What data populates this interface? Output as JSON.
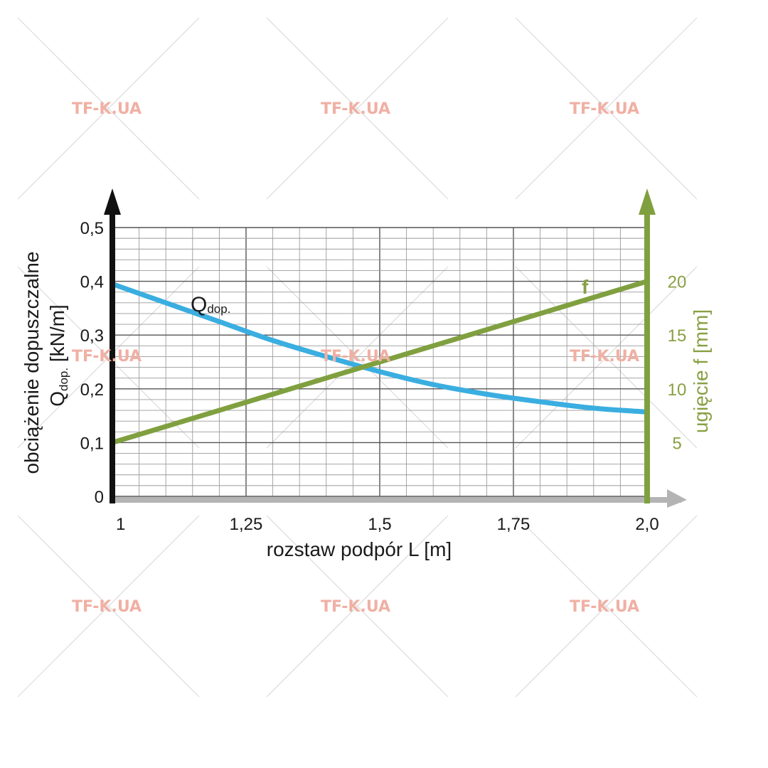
{
  "watermark": {
    "text": "TF-K.UA",
    "color": "#f0b0a4",
    "lines_color": "#dcdcdc"
  },
  "chart_data": {
    "type": "line",
    "x": [
      1,
      1.1,
      1.2,
      1.3,
      1.4,
      1.5,
      1.6,
      1.7,
      1.8,
      1.9,
      2.0
    ],
    "xlim": [
      1,
      2.0
    ],
    "xticks": [
      "1",
      "1,25",
      "1,5",
      "1,75",
      "2,0"
    ],
    "xtick_values": [
      1,
      1.25,
      1.5,
      1.75,
      2.0
    ],
    "xlabel": "rozstaw podpór L [m]",
    "ylim": [
      0,
      0.5
    ],
    "yticks": [
      "0",
      "0,1",
      "0,2",
      "0,3",
      "0,4",
      "0,5"
    ],
    "ytick_values": [
      0,
      0.1,
      0.2,
      0.3,
      0.4,
      0.5
    ],
    "ylabel_main": "obciążenie dopuszczalne",
    "ylabel_sym": "Q",
    "ylabel_sub": "dop.",
    "ylabel_unit": " [kN/m]",
    "y2lim": [
      0,
      25
    ],
    "y2ticks": [
      "5",
      "10",
      "15",
      "20"
    ],
    "y2tick_values": [
      5,
      10,
      15,
      20
    ],
    "y2label": "ugięcie f [mm]",
    "grid": true,
    "series": [
      {
        "name_sym": "Q",
        "name_sub": "dop.",
        "axis": "left",
        "color": "#3aaee0",
        "values": [
          0.395,
          0.36,
          0.325,
          0.29,
          0.26,
          0.232,
          0.208,
          0.19,
          0.176,
          0.164,
          0.157
        ]
      },
      {
        "name": "f",
        "axis": "right",
        "color": "#80a040",
        "values": [
          5,
          6.5,
          8,
          9.5,
          11,
          12.5,
          14,
          15.5,
          17,
          18.5,
          20
        ]
      }
    ],
    "colors": {
      "left_axis": "#111111",
      "right_axis": "#80a040",
      "x_axis": "#b4b4b4",
      "grid_major": "#555555",
      "grid_minor": "#9a9a9a"
    }
  }
}
